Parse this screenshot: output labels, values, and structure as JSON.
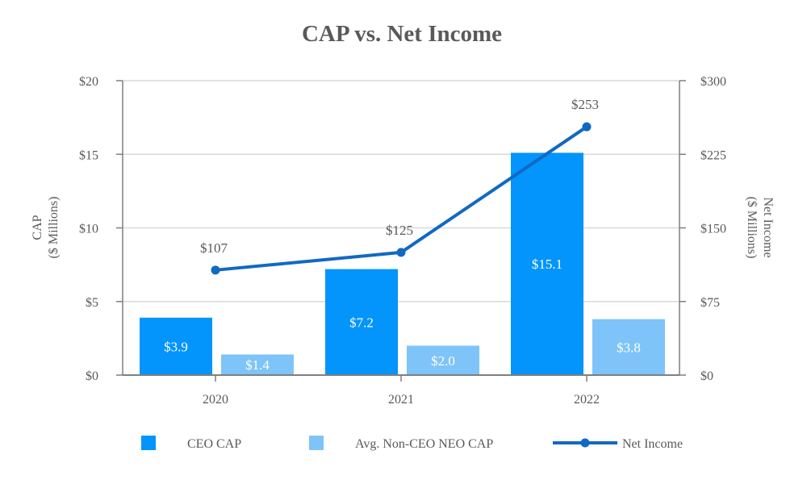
{
  "chart_data": {
    "type": "bar",
    "title": "CAP vs. Net Income",
    "categories": [
      "2020",
      "2021",
      "2022"
    ],
    "y_left": {
      "label_line1": "CAP",
      "label_line2": "($ Millions)",
      "range": [
        0,
        20
      ],
      "ticks": [
        0,
        5,
        10,
        15,
        20
      ],
      "tick_labels": [
        "$0",
        "$5",
        "$10",
        "$15",
        "$20"
      ]
    },
    "y_right": {
      "label_line1": "Net Income",
      "label_line2": "($ Millions)",
      "range": [
        0,
        300
      ],
      "ticks": [
        0,
        75,
        150,
        225,
        300
      ],
      "tick_labels": [
        "$0",
        "$75",
        "$150",
        "$225",
        "$300"
      ]
    },
    "series": [
      {
        "name": "CEO CAP",
        "type": "bar",
        "axis": "left",
        "color": "#0394FC",
        "values": [
          3.9,
          7.2,
          15.1
        ],
        "labels": [
          "$3.9",
          "$7.2",
          "$15.1"
        ]
      },
      {
        "name": "Avg. Non-CEO NEO CAP",
        "type": "bar",
        "axis": "left",
        "color": "#7EC4F8",
        "values": [
          1.4,
          2.0,
          3.8
        ],
        "labels": [
          "$1.4",
          "$2.0",
          "$3.8"
        ]
      },
      {
        "name": "Net Income",
        "type": "line",
        "axis": "right",
        "color": "#1169C2",
        "values": [
          107,
          125,
          253
        ],
        "labels": [
          "$107",
          "$125",
          "$253"
        ]
      }
    ],
    "grid": true,
    "legend_position": "bottom"
  }
}
